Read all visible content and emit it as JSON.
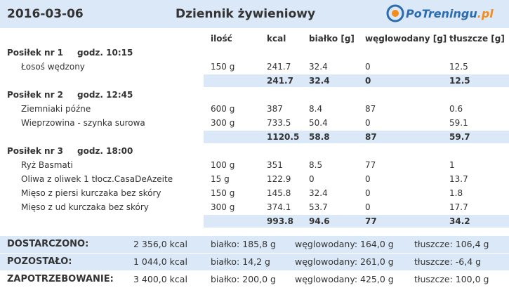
{
  "header": {
    "date": "2016-03-06",
    "title": "Dziennik żywieniowy",
    "logo_main": "PoTreningu",
    "logo_suffix": ".pl"
  },
  "table": {
    "columns": [
      "ilość",
      "kcal",
      "białko [g]",
      "węglowodany [g]",
      "tłuszcze [g]"
    ],
    "meals": [
      {
        "name": "Posiłek nr 1",
        "time": "godz. 10:15",
        "items": [
          [
            "Łosoś wędzony",
            "150 g",
            "241.7",
            "32.4",
            "0",
            "12.5"
          ]
        ],
        "totals": [
          "241.7",
          "32.4",
          "0",
          "12.5"
        ]
      },
      {
        "name": "Posiłek nr 2",
        "time": "godz. 12:45",
        "items": [
          [
            "Ziemniaki późne",
            "600 g",
            "387",
            "8.4",
            "87",
            "0.6"
          ],
          [
            "Wieprzowina - szynka surowa",
            "300 g",
            "733.5",
            "50.4",
            "0",
            "59.1"
          ]
        ],
        "totals": [
          "1120.5",
          "58.8",
          "87",
          "59.7"
        ]
      },
      {
        "name": "Posiłek nr 3",
        "time": "godz. 18:00",
        "items": [
          [
            "Ryż Basmati",
            "100 g",
            "351",
            "8.5",
            "77",
            "1"
          ],
          [
            "Oliwa z oliwek 1 tłocz.CasaDeAzeite",
            "15 g",
            "122.9",
            "0",
            "0",
            "13.7"
          ],
          [
            "Mięso z piersi kurczaka bez skóry",
            "150 g",
            "145.8",
            "32.4",
            "0",
            "1.8"
          ],
          [
            "Mięso z ud kurczaka bez skóry",
            "300 g",
            "374.1",
            "53.7",
            "0",
            "17.7"
          ]
        ],
        "totals": [
          "993.8",
          "94.6",
          "77",
          "34.2"
        ]
      }
    ]
  },
  "summary": [
    [
      "DOSTARCZONO:",
      "2 356,0 kcal",
      "białko: 185,8 g",
      "węglowodany: 164,0 g",
      "tłuszcze: 106,4 g"
    ],
    [
      "POZOSTAŁO:",
      "1 044,0 kcal",
      "białko: 14,2 g",
      "węglowodany: 261,0 g",
      "tłuszcze: -6,4 g"
    ],
    [
      "ZAPOTRZEBOWANIE:",
      "3 400,0 kcal",
      "białko: 200,0 g",
      "węglowodany: 425,0 g",
      "tłuszcze: 100,0 g"
    ]
  ]
}
